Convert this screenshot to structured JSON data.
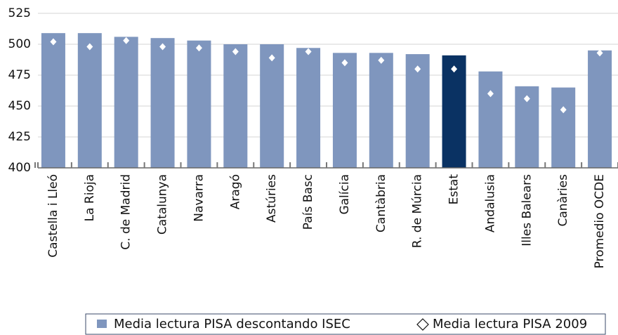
{
  "chart_data": {
    "type": "bar",
    "categories": [
      "Castella i Lleó",
      "La Rioja",
      "C. de Madrid",
      "Catalunya",
      "Navarra",
      "Aragó",
      "Astúries",
      "País Basc",
      "Galícia",
      "Cantàbria",
      "R. de Múrcia",
      "Estat",
      "Andalusia",
      "Illes Balears",
      "Canàries",
      "Promedio OCDE"
    ],
    "series": [
      {
        "name": "Media lectura PISA descontando ISEC",
        "color": "#7f96be",
        "colors": [
          "#7f96be",
          "#7f96be",
          "#7f96be",
          "#7f96be",
          "#7f96be",
          "#7f96be",
          "#7f96be",
          "#7f96be",
          "#7f96be",
          "#7f96be",
          "#7f96be",
          "#0a3263",
          "#7f96be",
          "#7f96be",
          "#7f96be",
          "#7f96be"
        ],
        "values": [
          509,
          509,
          506,
          505,
          503,
          500,
          500,
          497,
          493,
          493,
          492,
          491,
          478,
          466,
          465,
          495
        ]
      },
      {
        "name": "Media lectura PISA 2009",
        "color": "#ffffff",
        "marker": "diamond",
        "values": [
          502,
          498,
          503,
          498,
          497,
          494,
          489,
          494,
          485,
          487,
          480,
          480,
          460,
          456,
          447,
          493
        ]
      }
    ],
    "ylim": [
      400,
      525
    ],
    "yticks": [
      400,
      425,
      450,
      475,
      500,
      525
    ],
    "grid": true,
    "legend": "bottom"
  }
}
